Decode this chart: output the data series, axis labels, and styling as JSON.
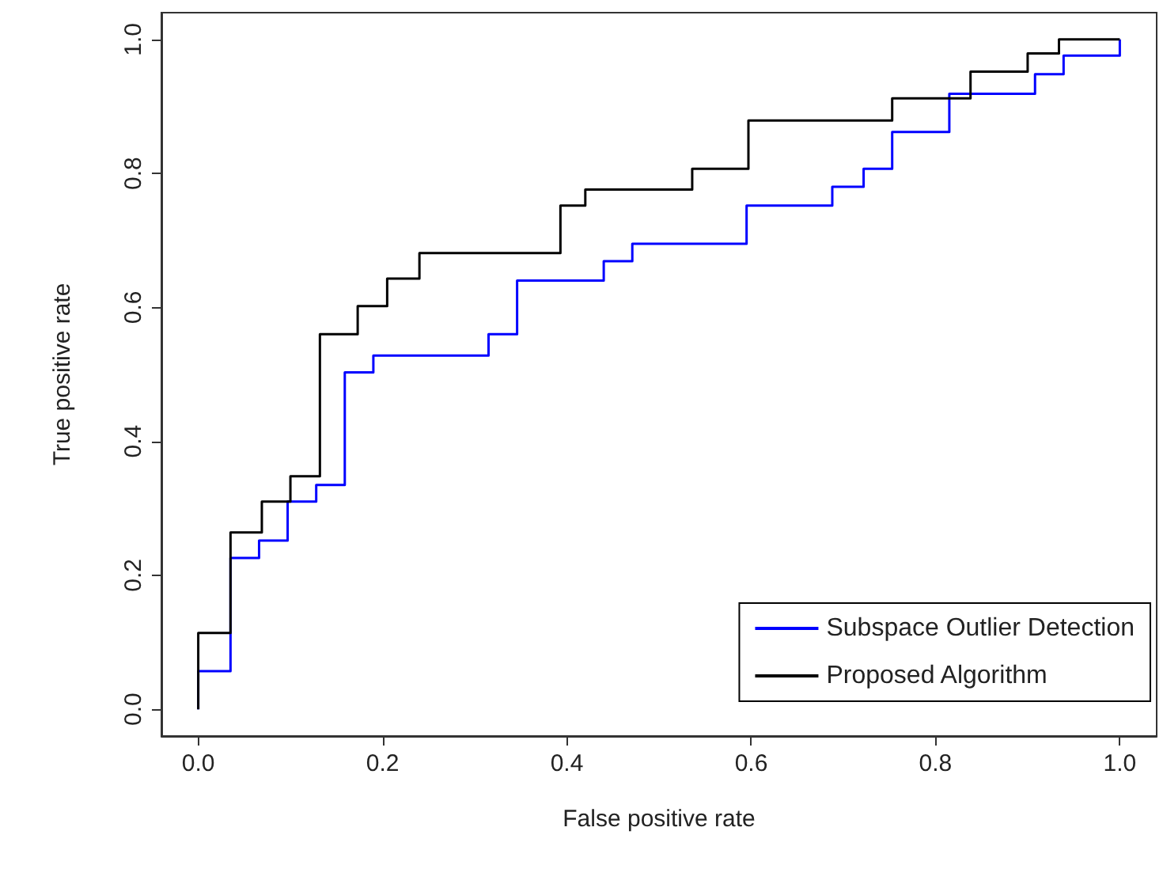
{
  "chart_data": {
    "type": "step",
    "xlabel": "False positive rate",
    "ylabel": "True positive rate",
    "xlim": [
      -0.04,
      1.04
    ],
    "ylim": [
      -0.04,
      1.04
    ],
    "xticks": [
      {
        "value": 0,
        "label": "0.0"
      },
      0.2,
      0.4,
      0.6,
      0.8,
      {
        "value": 1,
        "label": "1.0"
      }
    ],
    "yticks": [
      {
        "value": 0,
        "label": "0.0"
      },
      0.2,
      0.4,
      0.6,
      0.8,
      {
        "value": 1,
        "label": "1.0"
      }
    ],
    "legend": "bottom right",
    "marker": "none",
    "line_style": "solid",
    "series": [
      {
        "name": "Subspace Outlier Detection",
        "color": "#0000ff",
        "x": [
          0,
          0,
          0.035,
          0.066,
          0.097,
          0.128,
          0.159,
          0.19,
          0.315,
          0.346,
          0.44,
          0.471,
          0.595,
          0.688,
          0.722,
          0.753,
          0.815,
          0.908,
          0.939,
          1
        ],
        "values": [
          0,
          0.057,
          0.226,
          0.252,
          0.31,
          0.335,
          0.503,
          0.528,
          0.56,
          0.64,
          0.669,
          0.695,
          0.752,
          0.78,
          0.807,
          0.862,
          0.919,
          0.948,
          0.976,
          1
        ]
      },
      {
        "name": "Proposed Algorithm",
        "color": "#000000",
        "x": [
          0,
          0,
          0.035,
          0.069,
          0.1,
          0.132,
          0.173,
          0.205,
          0.24,
          0.393,
          0.42,
          0.536,
          0.597,
          0.753,
          0.838,
          0.9,
          0.934,
          1
        ],
        "values": [
          0,
          0.114,
          0.264,
          0.31,
          0.348,
          0.56,
          0.602,
          0.643,
          0.681,
          0.752,
          0.776,
          0.807,
          0.879,
          0.912,
          0.952,
          0.979,
          1,
          1
        ]
      }
    ]
  }
}
